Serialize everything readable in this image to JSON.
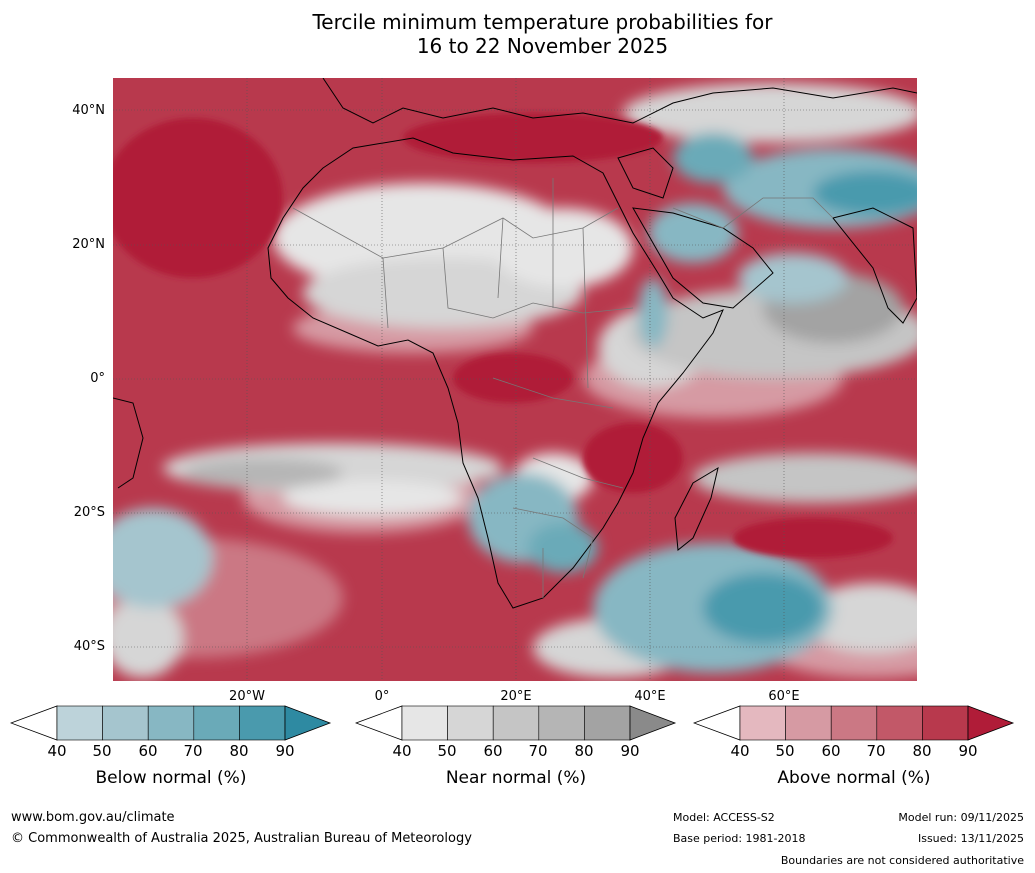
{
  "title": {
    "line1": "Tercile minimum temperature probabilities for",
    "line2": "16 to 22 November 2025"
  },
  "map": {
    "lat_labels": [
      "40°N",
      "20°N",
      "0°",
      "20°S",
      "40°S"
    ],
    "lon_labels": [
      "20°W",
      "0°",
      "20°E",
      "40°E",
      "60°E"
    ]
  },
  "colorbars": [
    {
      "label": "Below normal (%)",
      "ticks": [
        "40",
        "50",
        "60",
        "70",
        "80",
        "90"
      ],
      "colors": [
        "#bdd3da",
        "#a5c5ce",
        "#87b7c3",
        "#6aaab8",
        "#4a9aad",
        "#2e8aa2"
      ]
    },
    {
      "label": "Near normal (%)",
      "ticks": [
        "40",
        "50",
        "60",
        "70",
        "80",
        "90"
      ],
      "colors": [
        "#e6e6e6",
        "#d6d6d6",
        "#c5c5c5",
        "#b5b5b5",
        "#a3a3a3",
        "#8a8a8a"
      ]
    },
    {
      "label": "Above normal (%)",
      "ticks": [
        "40",
        "50",
        "60",
        "70",
        "80",
        "90"
      ],
      "colors": [
        "#e4b8bf",
        "#d69aa3",
        "#cb7884",
        "#c25868",
        "#b8394d",
        "#b01c38"
      ]
    }
  ],
  "footer": {
    "website": "www.bom.gov.au/climate",
    "copyright": "© Commonwealth of Australia 2025, Australian Bureau of Meteorology",
    "model": "Model: ACCESS-S2",
    "base_period": "Base period: 1981-2018",
    "model_run": "Model run: 09/11/2025",
    "issued": "Issued: 13/11/2025",
    "disclaimer": "Boundaries are not considered authoritative"
  }
}
